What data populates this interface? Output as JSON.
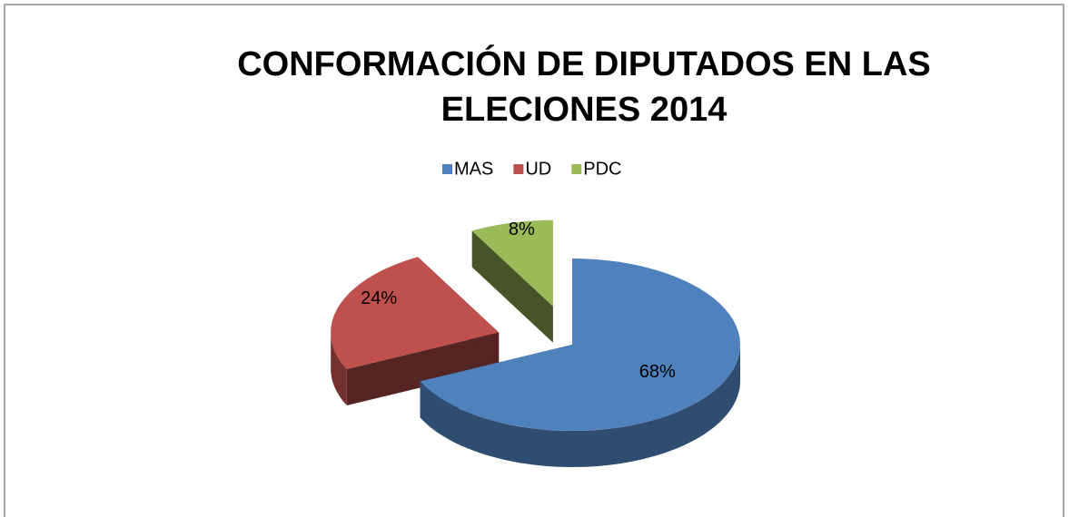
{
  "chart_data": {
    "type": "pie",
    "title": "CONFORMACIÓN DE DIPUTADOS EN LAS ELECIONES 2014",
    "categories": [
      "MAS",
      "UD",
      "PDC"
    ],
    "values": [
      68,
      24,
      8
    ],
    "value_labels": [
      "68%",
      "24%",
      "8%"
    ],
    "colors": [
      "#4f81bd",
      "#c0504d",
      "#9bbb59"
    ],
    "legend": "top"
  }
}
